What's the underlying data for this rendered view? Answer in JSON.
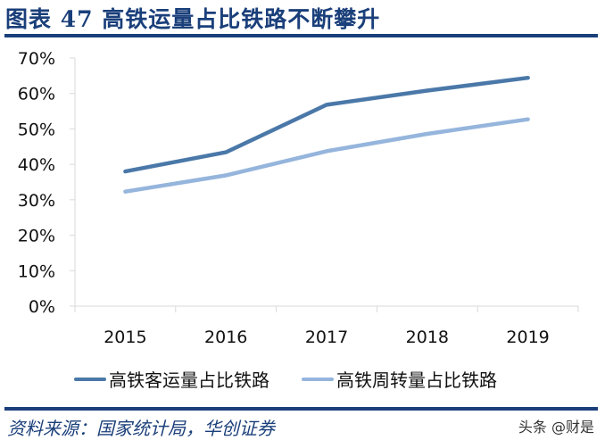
{
  "header": {
    "title": "图表 47  高铁运量占比铁路不断攀升"
  },
  "footer": {
    "source": "资料来源：国家统计局，华创证券",
    "watermark": "头条 @财是"
  },
  "colors": {
    "title": "#1a3f7a",
    "series1": "#4a78a8",
    "series2": "#95b5dc",
    "axis": "#d9d9d9"
  },
  "chart_data": {
    "type": "line",
    "title": "高铁运量占比铁路不断攀升",
    "xlabel": "",
    "ylabel": "",
    "categories": [
      "2015",
      "2016",
      "2017",
      "2018",
      "2019"
    ],
    "series": [
      {
        "name": "高铁客运量占比铁路",
        "values": [
          38.0,
          43.4,
          56.8,
          60.8,
          64.4
        ],
        "color": "#4a78a8"
      },
      {
        "name": "高铁周转量占比铁路",
        "values": [
          32.3,
          36.9,
          43.7,
          48.6,
          52.7
        ],
        "color": "#95b5dc"
      }
    ],
    "yticks": [
      "0%",
      "10%",
      "20%",
      "30%",
      "40%",
      "50%",
      "60%",
      "70%"
    ],
    "ylim": [
      0,
      70
    ],
    "grid": false,
    "legend_position": "bottom"
  }
}
